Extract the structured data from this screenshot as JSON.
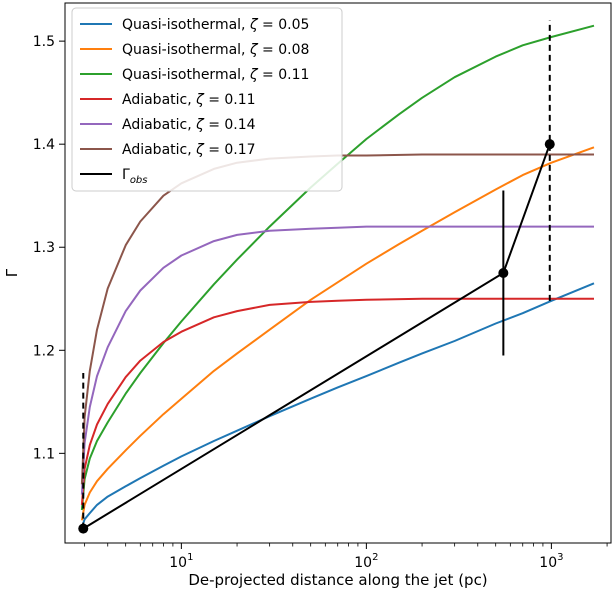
{
  "chart_data": {
    "type": "line",
    "xlabel": "De-projected distance along the jet (pc)",
    "ylabel": "Γ",
    "x_scale": "log",
    "xlim": [
      2.35,
      2100
    ],
    "ylim": [
      1.013,
      1.537
    ],
    "x_ticks": [
      {
        "value": 10,
        "base": "10",
        "exp": "1"
      },
      {
        "value": 100,
        "base": "10",
        "exp": "2"
      },
      {
        "value": 1000,
        "base": "10",
        "exp": "3"
      }
    ],
    "y_ticks": [
      "1.1",
      "1.2",
      "1.3",
      "1.4",
      "1.5"
    ],
    "y_tick_values": [
      1.1,
      1.2,
      1.3,
      1.4,
      1.5
    ],
    "grid": false,
    "legend_position": "top-left",
    "series": [
      {
        "name": "Quasi-isothermal, ζ = 0.05",
        "legend_label": "Quasi-isothermal, ",
        "legend_zeta": "ζ",
        "legend_value": " = 0.05",
        "color": "#1f77b4",
        "x": [
          2.9,
          3,
          3.2,
          3.5,
          4,
          5,
          6,
          8,
          10,
          15,
          20,
          30,
          50,
          70,
          100,
          150,
          200,
          300,
          500,
          700,
          1000,
          1700
        ],
        "y": [
          1.028,
          1.036,
          1.042,
          1.05,
          1.058,
          1.068,
          1.076,
          1.088,
          1.097,
          1.112,
          1.122,
          1.136,
          1.153,
          1.164,
          1.175,
          1.188,
          1.197,
          1.209,
          1.226,
          1.236,
          1.248,
          1.265
        ]
      },
      {
        "name": "Quasi-isothermal, ζ = 0.08",
        "legend_label": "Quasi-isothermal, ",
        "legend_zeta": "ζ",
        "legend_value": " = 0.08",
        "color": "#ff7f0e",
        "x": [
          2.9,
          3,
          3.2,
          3.5,
          4,
          5,
          6,
          8,
          10,
          15,
          20,
          30,
          50,
          70,
          100,
          150,
          200,
          300,
          500,
          700,
          1000,
          1700
        ],
        "y": [
          1.035,
          1.05,
          1.062,
          1.073,
          1.085,
          1.103,
          1.117,
          1.138,
          1.153,
          1.18,
          1.197,
          1.22,
          1.249,
          1.266,
          1.284,
          1.303,
          1.316,
          1.334,
          1.356,
          1.37,
          1.382,
          1.397
        ]
      },
      {
        "name": "Quasi-isothermal, ζ = 0.11",
        "legend_label": "Quasi-isothermal, ",
        "legend_zeta": "ζ",
        "legend_value": " = 0.11",
        "color": "#2ca02c",
        "x": [
          2.9,
          3,
          3.2,
          3.5,
          4,
          5,
          6,
          8,
          10,
          15,
          20,
          30,
          50,
          70,
          100,
          150,
          200,
          300,
          500,
          700,
          1000,
          1700
        ],
        "y": [
          1.045,
          1.075,
          1.095,
          1.112,
          1.13,
          1.158,
          1.178,
          1.207,
          1.228,
          1.264,
          1.288,
          1.32,
          1.358,
          1.381,
          1.405,
          1.429,
          1.445,
          1.465,
          1.485,
          1.496,
          1.504,
          1.515
        ]
      },
      {
        "name": "Adiabatic, ζ = 0.11",
        "legend_label": "Adiabatic, ",
        "legend_zeta": "ζ",
        "legend_value": " = 0.11",
        "color": "#d62728",
        "x": [
          2.9,
          3,
          3.2,
          3.5,
          4,
          5,
          6,
          8,
          10,
          15,
          20,
          30,
          50,
          70,
          100,
          200,
          500,
          1000,
          1700
        ],
        "y": [
          1.05,
          1.085,
          1.108,
          1.128,
          1.148,
          1.174,
          1.19,
          1.208,
          1.218,
          1.232,
          1.238,
          1.244,
          1.247,
          1.248,
          1.249,
          1.25,
          1.25,
          1.25,
          1.25
        ]
      },
      {
        "name": "Adiabatic, ζ = 0.14",
        "legend_label": "Adiabatic, ",
        "legend_zeta": "ζ",
        "legend_value": " = 0.14",
        "color": "#9467bd",
        "x": [
          2.9,
          3,
          3.2,
          3.5,
          4,
          5,
          6,
          8,
          10,
          15,
          20,
          30,
          50,
          70,
          100,
          200,
          500,
          1000,
          1700
        ],
        "y": [
          1.06,
          1.11,
          1.145,
          1.175,
          1.203,
          1.238,
          1.258,
          1.28,
          1.292,
          1.306,
          1.312,
          1.316,
          1.318,
          1.319,
          1.32,
          1.32,
          1.32,
          1.32,
          1.32
        ]
      },
      {
        "name": "Adiabatic, ζ = 0.17",
        "legend_label": "Adiabatic, ",
        "legend_zeta": "ζ",
        "legend_value": " = 0.17",
        "color": "#8c564b",
        "x": [
          2.9,
          3,
          3.2,
          3.5,
          4,
          5,
          6,
          8,
          10,
          15,
          20,
          30,
          50,
          70,
          100,
          200,
          500,
          1000,
          1700
        ],
        "y": [
          1.07,
          1.135,
          1.18,
          1.22,
          1.26,
          1.302,
          1.325,
          1.35,
          1.362,
          1.376,
          1.382,
          1.386,
          1.388,
          1.389,
          1.389,
          1.39,
          1.39,
          1.39,
          1.39
        ]
      }
    ],
    "observed": {
      "name": "Γobs",
      "legend_base": "Γ",
      "legend_sub": "obs",
      "color": "#000000",
      "x": [
        2.95,
        550,
        980
      ],
      "y": [
        1.027,
        1.275,
        1.4
      ],
      "error_low": [
        1.027,
        1.195,
        1.248
      ],
      "error_high": [
        1.178,
        1.355,
        1.52
      ],
      "dashed_error": [
        true,
        false,
        true
      ]
    }
  }
}
